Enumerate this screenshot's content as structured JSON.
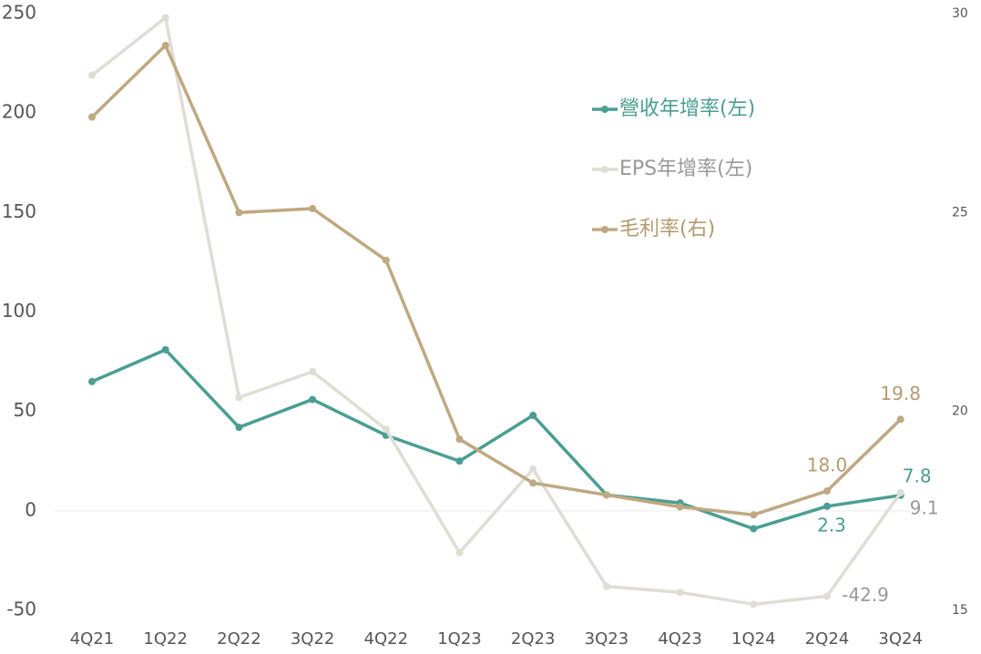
{
  "chart_data": {
    "type": "line",
    "categories": [
      "4Q21",
      "1Q22",
      "2Q22",
      "3Q22",
      "4Q22",
      "1Q23",
      "2Q23",
      "3Q23",
      "4Q23",
      "1Q24",
      "2Q24",
      "3Q24"
    ],
    "series": [
      {
        "name": "營收年增率(左)",
        "color": "#4a9e92",
        "axis": "y",
        "values": [
          65,
          81,
          42,
          56,
          38,
          25,
          48,
          8,
          4,
          -9,
          2.3,
          7.8
        ],
        "value_labels": [
          null,
          null,
          null,
          null,
          null,
          null,
          null,
          null,
          null,
          null,
          "2.3",
          "7.8"
        ]
      },
      {
        "name": "EPS年增率(左)",
        "color": "#e0ddd5",
        "axis": "y",
        "values": [
          219,
          248,
          57,
          70,
          41,
          -21,
          21,
          -38,
          -41,
          -47,
          -42.9,
          9.1
        ],
        "value_labels": [
          null,
          null,
          null,
          null,
          null,
          null,
          null,
          null,
          null,
          null,
          "-42.9",
          "9.1"
        ]
      },
      {
        "name": "毛利率(右)",
        "color": "#bfa882",
        "axis": "y2",
        "values": [
          27.4,
          29.2,
          25.0,
          25.1,
          23.8,
          19.3,
          18.2,
          17.9,
          17.6,
          17.4,
          18.0,
          19.8
        ],
        "value_labels": [
          null,
          null,
          null,
          null,
          null,
          null,
          null,
          null,
          null,
          null,
          "18.0",
          "19.8"
        ]
      }
    ],
    "ylim": [
      -50,
      250
    ],
    "yticks": [
      -50,
      0,
      50,
      100,
      150,
      200,
      250
    ],
    "y2lim": [
      15,
      30
    ],
    "y2ticks": [
      15,
      20,
      25,
      30
    ],
    "zero_line": true,
    "grid": false,
    "legend": "upper right"
  }
}
